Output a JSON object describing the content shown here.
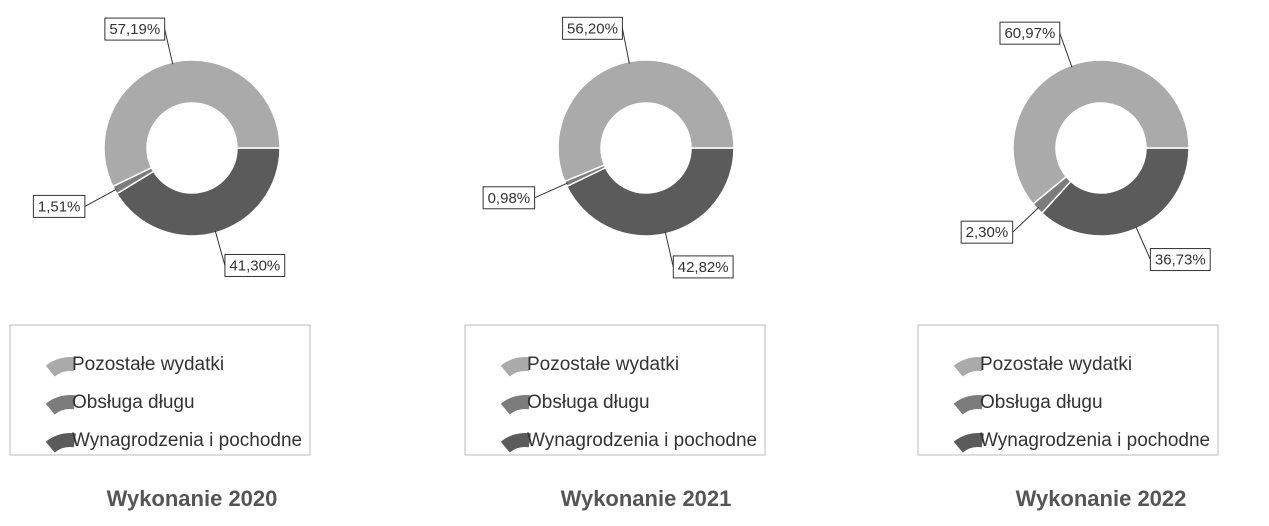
{
  "chart_data": [
    {
      "type": "donut",
      "title": "Wykonanie 2020",
      "categories": [
        "Pozostałe wydatki",
        "Obsługa długu",
        "Wynagrodzenia i pochodne"
      ],
      "values": [
        57.19,
        1.51,
        41.3
      ],
      "value_labels": [
        "57,19%",
        "1,51%",
        "41,30%"
      ],
      "colors": [
        "#aaaaaa",
        "#7c7c7c",
        "#5b5b5b"
      ]
    },
    {
      "type": "donut",
      "title": "Wykonanie 2021",
      "categories": [
        "Pozostałe wydatki",
        "Obsługa długu",
        "Wynagrodzenia i pochodne"
      ],
      "values": [
        56.2,
        0.98,
        42.82
      ],
      "value_labels": [
        "56,20%",
        "0,98%",
        "42,82%"
      ],
      "colors": [
        "#aaaaaa",
        "#7c7c7c",
        "#5b5b5b"
      ]
    },
    {
      "type": "donut",
      "title": "Wykonanie 2022",
      "categories": [
        "Pozostałe wydatki",
        "Obsługa długu",
        "Wynagrodzenia i pochodne"
      ],
      "values": [
        60.97,
        2.3,
        36.73
      ],
      "value_labels": [
        "60,97%",
        "2,30%",
        "36,73%"
      ],
      "colors": [
        "#aaaaaa",
        "#7c7c7c",
        "#5b5b5b"
      ]
    }
  ]
}
